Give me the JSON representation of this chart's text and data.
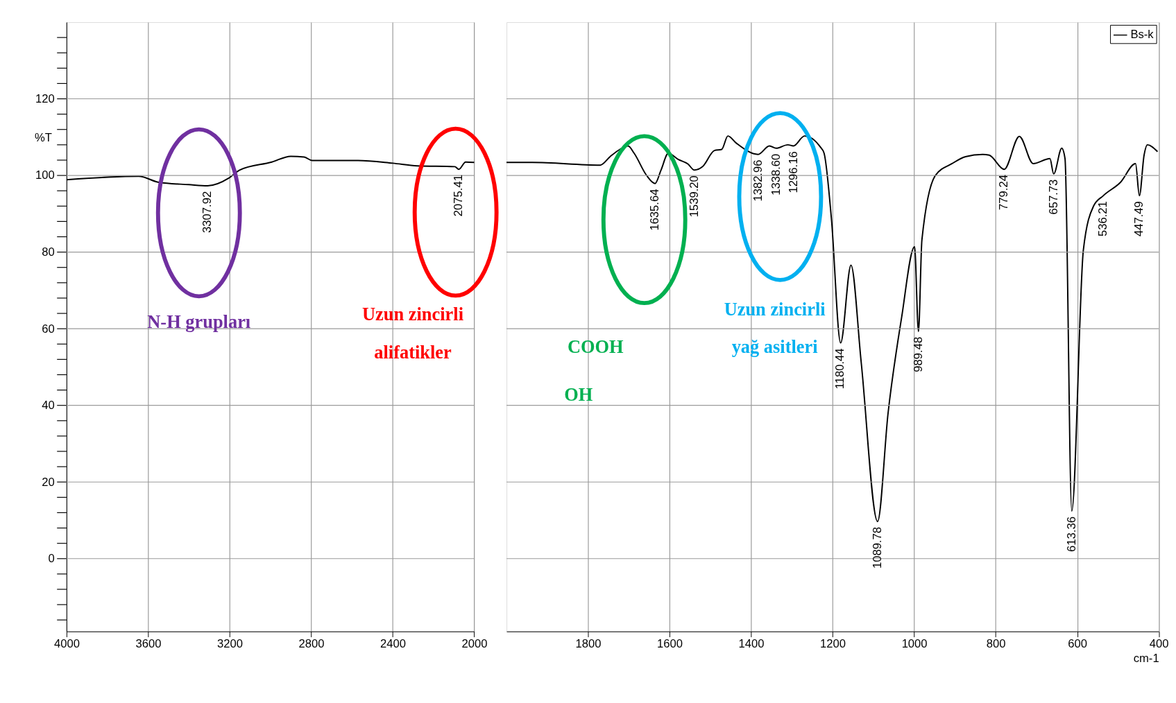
{
  "chart_data": [
    {
      "type": "line",
      "ylabel": "%T",
      "xlim": [
        4000,
        2000
      ],
      "xticks": [
        4000,
        3600,
        3200,
        2800,
        2400,
        2000
      ],
      "ylim": [
        -19,
        140
      ],
      "yticks": [
        {
          "value": -16,
          "label": null
        },
        {
          "value": -12,
          "label": null
        },
        {
          "value": -8,
          "label": null
        },
        {
          "value": -4,
          "label": null
        },
        0,
        {
          "value": 4,
          "label": null
        },
        {
          "value": 8,
          "label": null
        },
        {
          "value": 12,
          "label": null
        },
        {
          "value": 16,
          "label": null
        },
        20,
        {
          "value": 24,
          "label": null
        },
        {
          "value": 28,
          "label": null
        },
        {
          "value": 32,
          "label": null
        },
        {
          "value": 36,
          "label": null
        },
        40,
        {
          "value": 44,
          "label": null
        },
        {
          "value": 48,
          "label": null
        },
        {
          "value": 52,
          "label": null
        },
        {
          "value": 56,
          "label": null
        },
        60,
        {
          "value": 64,
          "label": null
        },
        {
          "value": 68,
          "label": null
        },
        {
          "value": 72,
          "label": null
        },
        {
          "value": 76,
          "label": null
        },
        80,
        {
          "value": 84,
          "label": null
        },
        {
          "value": 88,
          "label": null
        },
        {
          "value": 92,
          "label": null
        },
        {
          "value": 96,
          "label": null
        },
        100,
        {
          "value": 104,
          "label": null
        },
        {
          "value": 108,
          "label": null
        },
        {
          "value": 112,
          "label": null
        },
        {
          "value": 116,
          "label": null
        },
        120,
        {
          "value": 124,
          "label": null
        },
        {
          "value": 128,
          "label": null
        },
        {
          "value": 132,
          "label": null
        },
        {
          "value": 136,
          "label": null
        }
      ],
      "grid": true,
      "x": [
        4000,
        3646,
        3547,
        3400,
        3307.92,
        3204,
        3151,
        2993,
        2900,
        2834,
        2795,
        2570,
        2400,
        2280,
        2095,
        2075.41,
        2042,
        2000
      ],
      "series": [
        {
          "color": "#000000",
          "values": [
            98.9,
            99.8,
            98.2,
            97.6,
            97.3,
            99.3,
            101.4,
            103.5,
            105,
            104.8,
            103.9,
            103.9,
            103.2,
            102.5,
            102.3,
            101.6,
            103.5,
            103.4
          ]
        }
      ],
      "annotations": [
        "N-H grupları",
        "Uzun zincirli",
        "alifatikler",
        {
          "text": "3307.92",
          "x": 3307.92,
          "y": 97.3
        },
        {
          "text": "2075.41",
          "x": 2075.41,
          "y": 101.6
        }
      ]
    },
    {
      "type": "line",
      "xlabel": "cm-1",
      "xlim": [
        2000,
        400
      ],
      "xticks": [
        1800,
        1600,
        1400,
        1200,
        1000,
        800,
        600,
        400
      ],
      "ylim": [
        -19,
        140
      ],
      "yticks": [
        0,
        20,
        40,
        60,
        80,
        100,
        120
      ],
      "tick_labels": "x",
      "grid": true,
      "legend": "top right",
      "x": [
        2000,
        1937,
        1770,
        1746,
        1722,
        1702,
        1687,
        1657,
        1635.64,
        1621,
        1603,
        1579,
        1555,
        1539.2,
        1519,
        1490,
        1472,
        1457,
        1436,
        1382.96,
        1355,
        1338.6,
        1310,
        1296.16,
        1269,
        1230,
        1221,
        1203,
        1180.44,
        1155,
        1130,
        1089.78,
        1064,
        1031,
        999,
        989.48,
        981,
        948,
        907,
        874,
        832,
        816,
        779.24,
        742,
        708,
        667,
        657.73,
        638,
        630,
        613.36,
        585,
        560,
        536.21,
        494,
        457,
        447.49,
        436,
        428,
        403
      ],
      "series": [
        {
          "name": "Bs-k",
          "color": "#000000",
          "values": [
            103.4,
            103.4,
            102.7,
            104.9,
            106.8,
            107.7,
            105.8,
            100.1,
            97.9,
            101.4,
            105.8,
            104.2,
            103,
            101.4,
            102.3,
            106.5,
            106.8,
            110.3,
            108.4,
            105.5,
            107.7,
            107.1,
            108,
            107.7,
            110.3,
            107.4,
            105.8,
            88.7,
            56.3,
            76.6,
            51.3,
            9.7,
            38,
            62.8,
            81.4,
            59.3,
            83.2,
            100,
            103.1,
            104.9,
            105.5,
            105.3,
            101.6,
            110.2,
            103.1,
            104.4,
            100.4,
            107.1,
            104.4,
            12.4,
            80.5,
            92,
            94.7,
            98.2,
            103.1,
            94.7,
            105.3,
            108,
            106.2
          ]
        }
      ],
      "annotations": [
        "COOH",
        "OH",
        "Uzun zincirli",
        "yağ asitleri",
        {
          "text": "1635.64",
          "x": 1635.64,
          "y": 97.9
        },
        {
          "text": "1539.20",
          "x": 1539.2,
          "y": 101.4
        },
        {
          "text": "1382.96",
          "x": 1382.96,
          "y": 105.5
        },
        {
          "text": "1338.60",
          "x": 1338.6,
          "y": 107.1
        },
        {
          "text": "1296.16",
          "x": 1296.16,
          "y": 107.7
        },
        {
          "text": "1180.44",
          "x": 1180.44,
          "y": 56.3
        },
        {
          "text": "1089.78",
          "x": 1089.78,
          "y": 9.7
        },
        {
          "text": "989.48",
          "x": 989.48,
          "y": 59.3
        },
        {
          "text": "779.24",
          "x": 779.24,
          "y": 101.6
        },
        {
          "text": "657.73",
          "x": 657.73,
          "y": 100.4
        },
        {
          "text": "613.36",
          "x": 613.36,
          "y": 12.4
        },
        {
          "text": "536.21",
          "x": 536.21,
          "y": 94.7
        },
        {
          "text": "447.49",
          "x": 447.49,
          "y": 94.7
        }
      ]
    }
  ]
}
